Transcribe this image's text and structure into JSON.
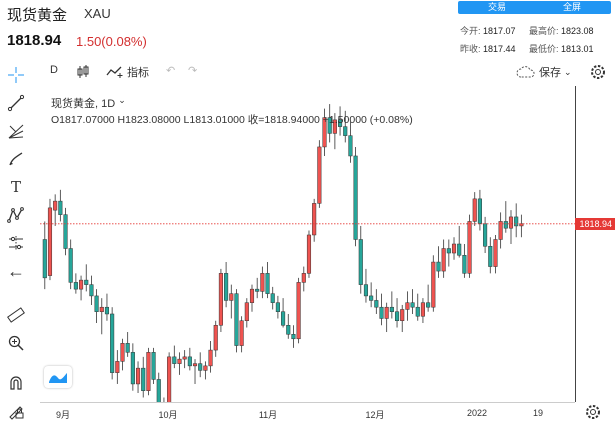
{
  "header": {
    "title": "现货黄金",
    "symbol": "XAU",
    "price": "1818.94",
    "change": "1.50(0.08%)",
    "buttons": {
      "trade": "交易",
      "full": "全屏"
    },
    "stats": {
      "open_label": "今开:",
      "open": "1817.07",
      "high_label": "最高价:",
      "high": "1823.08",
      "prev_label": "昨收:",
      "prev": "1817.44",
      "low_label": "最低价:",
      "low": "1813.01"
    }
  },
  "toolbar": {
    "interval": "D",
    "indicators": "指标",
    "save": "保存"
  },
  "legend": {
    "title": "现货黄金, 1D",
    "ohlc": "O1817.07000  H1823.08000  L1813.01000  收=1818.94000  +1.50000 (+0.08%)"
  },
  "price_tag": "1818.94",
  "time_axis": [
    "9月",
    "10月",
    "11月",
    "12月",
    "2022",
    "19"
  ],
  "colors": {
    "up": "#ef5350",
    "down": "#26a69a",
    "accent": "#2196f3",
    "last_price": "#e53935"
  },
  "chart_data": {
    "type": "candlestick",
    "title": "现货黄金, 1D",
    "last_price": 1818.94,
    "x_ticks": [
      "9月",
      "10月",
      "11月",
      "12月",
      "2022",
      "19"
    ],
    "ohlc_latest": {
      "open": 1817.07,
      "high": 1823.08,
      "low": 1813.01,
      "close": 1818.94,
      "change": 1.5,
      "change_pct": 0.08
    },
    "ylim": [
      1740,
      1880
    ],
    "candles": [
      [
        1812,
        1820,
        1790,
        1795
      ],
      [
        1796,
        1830,
        1794,
        1826
      ],
      [
        1825,
        1832,
        1818,
        1829
      ],
      [
        1829,
        1834,
        1820,
        1823
      ],
      [
        1823,
        1826,
        1805,
        1808
      ],
      [
        1808,
        1812,
        1790,
        1793
      ],
      [
        1793,
        1797,
        1788,
        1790
      ],
      [
        1790,
        1796,
        1785,
        1794
      ],
      [
        1794,
        1801,
        1789,
        1792
      ],
      [
        1792,
        1796,
        1783,
        1787
      ],
      [
        1787,
        1790,
        1775,
        1780
      ],
      [
        1780,
        1786,
        1770,
        1782
      ],
      [
        1782,
        1788,
        1776,
        1779
      ],
      [
        1779,
        1782,
        1750,
        1753
      ],
      [
        1753,
        1763,
        1748,
        1758
      ],
      [
        1758,
        1768,
        1754,
        1766
      ],
      [
        1766,
        1771,
        1760,
        1762
      ],
      [
        1762,
        1766,
        1745,
        1748
      ],
      [
        1748,
        1758,
        1744,
        1755
      ],
      [
        1755,
        1760,
        1742,
        1745
      ],
      [
        1745,
        1764,
        1743,
        1762
      ],
      [
        1762,
        1764,
        1748,
        1750
      ],
      [
        1750,
        1753,
        1735,
        1738
      ],
      [
        1738,
        1742,
        1727,
        1730
      ],
      [
        1730,
        1762,
        1728,
        1760
      ],
      [
        1760,
        1765,
        1755,
        1757
      ],
      [
        1757,
        1762,
        1752,
        1759
      ],
      [
        1759,
        1763,
        1755,
        1760
      ],
      [
        1760,
        1764,
        1754,
        1756
      ],
      [
        1756,
        1759,
        1748,
        1757
      ],
      [
        1757,
        1762,
        1751,
        1754
      ],
      [
        1754,
        1758,
        1750,
        1756
      ],
      [
        1756,
        1767,
        1753,
        1763
      ],
      [
        1763,
        1776,
        1760,
        1774
      ],
      [
        1774,
        1799,
        1771,
        1797
      ],
      [
        1797,
        1802,
        1782,
        1785
      ],
      [
        1785,
        1792,
        1777,
        1788
      ],
      [
        1788,
        1790,
        1762,
        1765
      ],
      [
        1765,
        1778,
        1762,
        1776
      ],
      [
        1776,
        1786,
        1773,
        1784
      ],
      [
        1784,
        1792,
        1780,
        1790
      ],
      [
        1790,
        1795,
        1786,
        1789
      ],
      [
        1789,
        1800,
        1786,
        1797
      ],
      [
        1797,
        1802,
        1786,
        1788
      ],
      [
        1788,
        1791,
        1781,
        1784
      ],
      [
        1784,
        1787,
        1777,
        1780
      ],
      [
        1780,
        1786,
        1773,
        1774
      ],
      [
        1774,
        1779,
        1768,
        1770
      ],
      [
        1770,
        1774,
        1764,
        1768
      ],
      [
        1768,
        1795,
        1766,
        1793
      ],
      [
        1793,
        1800,
        1789,
        1797
      ],
      [
        1797,
        1816,
        1795,
        1814
      ],
      [
        1814,
        1830,
        1811,
        1828
      ],
      [
        1828,
        1856,
        1826,
        1853
      ],
      [
        1853,
        1870,
        1849,
        1866
      ],
      [
        1866,
        1872,
        1855,
        1859
      ],
      [
        1859,
        1868,
        1852,
        1865
      ],
      [
        1865,
        1871,
        1858,
        1862
      ],
      [
        1862,
        1869,
        1855,
        1858
      ],
      [
        1858,
        1864,
        1846,
        1849
      ],
      [
        1849,
        1853,
        1809,
        1812
      ],
      [
        1812,
        1818,
        1788,
        1792
      ],
      [
        1792,
        1799,
        1784,
        1787
      ],
      [
        1787,
        1793,
        1782,
        1785
      ],
      [
        1785,
        1790,
        1779,
        1782
      ],
      [
        1782,
        1788,
        1774,
        1777
      ],
      [
        1777,
        1784,
        1771,
        1782
      ],
      [
        1782,
        1789,
        1777,
        1780
      ],
      [
        1780,
        1786,
        1773,
        1776
      ],
      [
        1776,
        1783,
        1771,
        1781
      ],
      [
        1781,
        1789,
        1776,
        1784
      ],
      [
        1784,
        1790,
        1779,
        1782
      ],
      [
        1782,
        1788,
        1776,
        1778
      ],
      [
        1778,
        1786,
        1775,
        1784
      ],
      [
        1784,
        1792,
        1780,
        1782
      ],
      [
        1782,
        1805,
        1780,
        1802
      ],
      [
        1802,
        1809,
        1795,
        1798
      ],
      [
        1798,
        1812,
        1795,
        1808
      ],
      [
        1808,
        1812,
        1800,
        1806
      ],
      [
        1806,
        1813,
        1803,
        1810
      ],
      [
        1810,
        1818,
        1804,
        1805
      ],
      [
        1805,
        1810,
        1795,
        1797
      ],
      [
        1797,
        1823,
        1795,
        1820
      ],
      [
        1820,
        1833,
        1818,
        1830
      ],
      [
        1830,
        1834,
        1816,
        1819
      ],
      [
        1819,
        1822,
        1806,
        1809
      ],
      [
        1809,
        1813,
        1797,
        1800
      ],
      [
        1800,
        1814,
        1797,
        1812
      ],
      [
        1812,
        1824,
        1808,
        1820
      ],
      [
        1820,
        1829,
        1815,
        1817
      ],
      [
        1817,
        1825,
        1810,
        1822
      ],
      [
        1822,
        1828,
        1813,
        1818
      ],
      [
        1818,
        1823,
        1813,
        1819
      ]
    ]
  }
}
